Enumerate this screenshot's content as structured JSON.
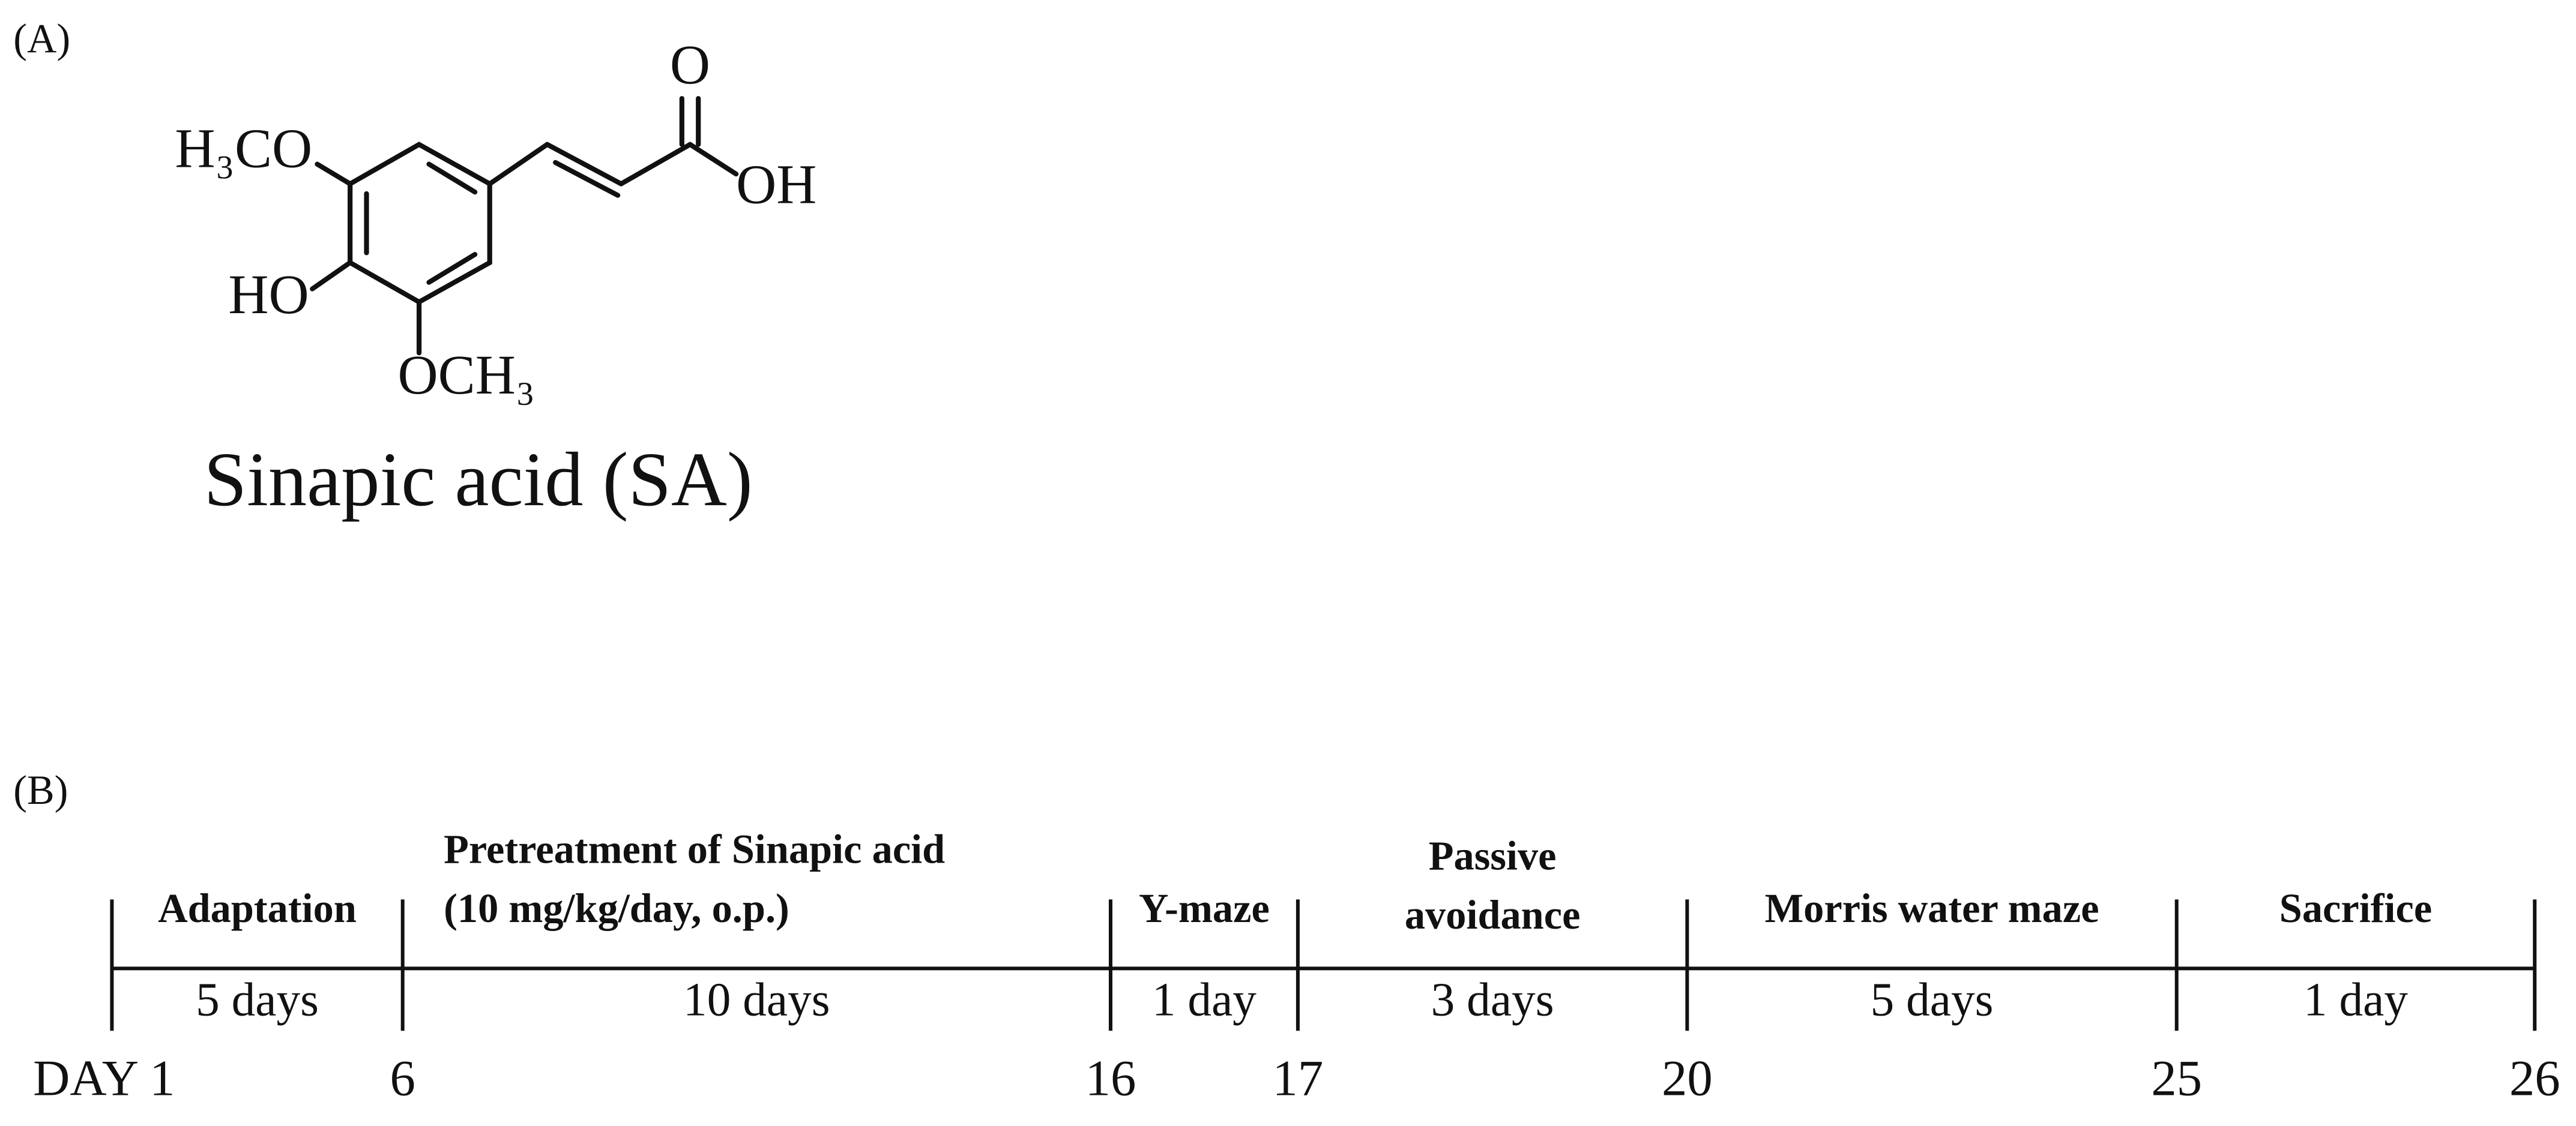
{
  "panel_a": {
    "label": "(A)",
    "atoms": {
      "methoxy_top": "H₃CO",
      "hydroxyl": "HO",
      "methoxy_bottom": "OCH₃",
      "carbonyl_oxygen": "O",
      "acid_hydroxyl": "OH"
    },
    "compound_name": "Sinapic acid (SA)"
  },
  "panel_b": {
    "label": "(B)",
    "phases": [
      {
        "name": [
          "Adaptation"
        ],
        "duration": "5 days"
      },
      {
        "name": [
          "Pretreatment of Sinapic acid",
          "(10 mg/kg/day, o.p.)"
        ],
        "duration": "10 days"
      },
      {
        "name": [
          "Y-maze"
        ],
        "duration": "1 day"
      },
      {
        "name": [
          "Passive",
          "avoidance"
        ],
        "duration": "3 days"
      },
      {
        "name": [
          "Morris water maze"
        ],
        "duration": "5 days"
      },
      {
        "name": [
          "Sacrifice"
        ],
        "duration": "1 day"
      }
    ],
    "days": [
      "DAY 1",
      "6",
      "16",
      "17",
      "20",
      "25",
      "26"
    ]
  }
}
